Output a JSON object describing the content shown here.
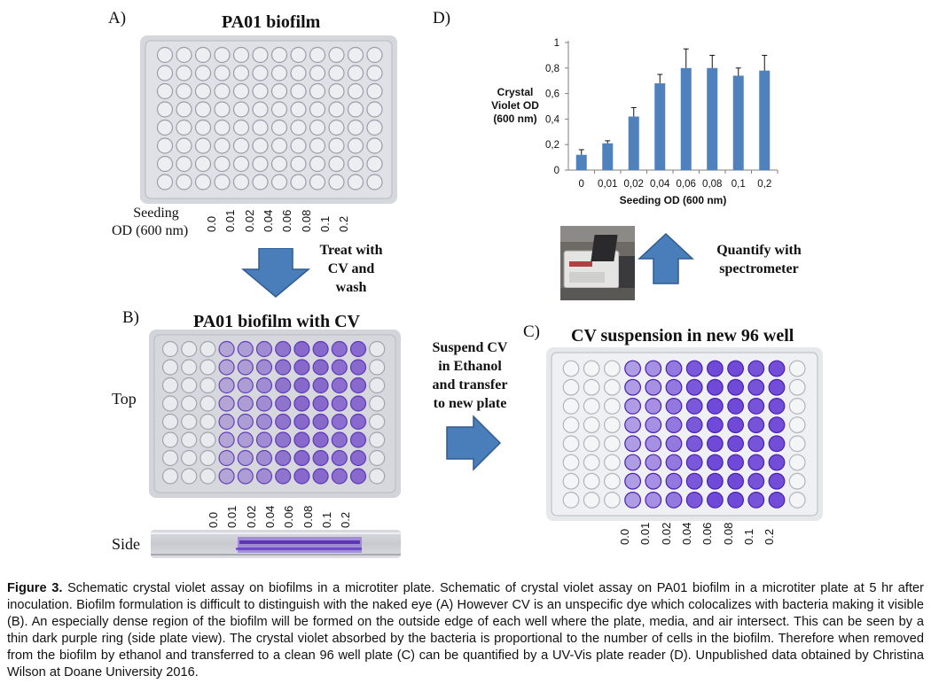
{
  "panel_a": {
    "letter": "A)",
    "title": "PA01 biofilm",
    "seeding_label_line1": "Seeding",
    "seeding_label_line2": "OD (600 nm)",
    "od_labels": [
      "0.0",
      "0.01",
      "0.02",
      "0.04",
      "0.06",
      "0.08",
      "0.1",
      "0.2"
    ]
  },
  "step_treat": {
    "line1": "Treat with",
    "line2": "CV and",
    "line3": "wash"
  },
  "panel_b": {
    "letter": "B)",
    "title": "PA01 biofilm with CV",
    "top_label": "Top",
    "side_label": "Side",
    "od_labels": [
      "0.0",
      "0.01",
      "0.02",
      "0.04",
      "0.06",
      "0.08",
      "0.1",
      "0.2"
    ]
  },
  "step_suspend": {
    "line1": "Suspend CV",
    "line2": "in Ethanol",
    "line3": "and transfer",
    "line4": "to new plate"
  },
  "panel_c": {
    "letter": "C)",
    "title": "CV suspension in new  96 well",
    "od_labels": [
      "0.0",
      "0.01",
      "0.02",
      "0.04",
      "0.06",
      "0.08",
      "0.1",
      "0.2"
    ]
  },
  "panel_d": {
    "letter": "D)"
  },
  "step_quantify": {
    "line1": "Quantify with",
    "line2": "spectrometer"
  },
  "chart_data": {
    "type": "bar",
    "title": "",
    "xlabel": "Seeding OD (600 nm)",
    "ylabel_lines": [
      "Crystal",
      "Violet OD",
      "(600 nm)"
    ],
    "categories": [
      "0",
      "0,01",
      "0,02",
      "0,04",
      "0,06",
      "0,08",
      "0,1",
      "0,2"
    ],
    "values": [
      0.12,
      0.21,
      0.42,
      0.68,
      0.8,
      0.8,
      0.74,
      0.78
    ],
    "errors": [
      0.04,
      0.02,
      0.07,
      0.07,
      0.15,
      0.1,
      0.06,
      0.12
    ],
    "ylim": [
      0,
      1
    ],
    "yticks": [
      "0",
      "0,2",
      "0,4",
      "0,6",
      "0,8",
      "1"
    ],
    "ytick_values": [
      0,
      0.2,
      0.4,
      0.6,
      0.8,
      1.0
    ],
    "bar_color": "#4f81bd",
    "grid": false
  },
  "caption": {
    "label": "Figure 3.",
    "text": " Schematic crystal violet assay on biofilms in a microtiter plate. Schematic of crystal violet assay on PA01 biofilm in a microtiter plate at 5 hr after inoculation. Biofilm formulation is difficult to distinguish with the naked eye (A) However CV is an unspecific dye which colocalizes with bacteria making it visible (B). An especially dense region of the biofilm will be formed on the outside edge of each well where the plate, media, and air intersect. This can be seen by a thin dark purple ring (side plate view). The crystal violet absorbed by the bacteria is proportional to the number of cells in the biofilm. Therefore when removed from the biofilm by ethanol and transferred to a clean 96 well plate (C) can be quantified by a UV-Vis plate reader (D). Unpublished data obtained by Christina Wilson at Doane University 2016."
  },
  "colors": {
    "arrow_fill": "#4a7ebb",
    "arrow_stroke": "#2f5c8f",
    "cv_purple": "#6a3fc6",
    "cv_dark": "#4b1fb0"
  }
}
